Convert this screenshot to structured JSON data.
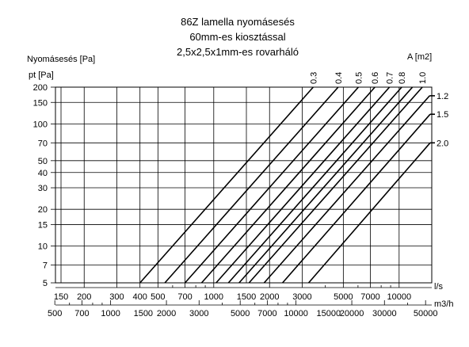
{
  "chart_data": {
    "type": "line",
    "title": [
      "86Z lamella nyomásesés",
      "60mm-es kiosztással",
      "2,5x2,5x1mm-es rovarháló"
    ],
    "ylabel_top": "Nyomásesés [Pa]",
    "ylabel": "pt [Pa]",
    "area_label": "A [m2]",
    "xlabel_ls": "l/s",
    "xlabel_m3h": "m3/h",
    "y_scale": "log",
    "x_scale": "log",
    "ylim": [
      5,
      200
    ],
    "xlim_ls": [
      140,
      15000
    ],
    "grid": true,
    "y_ticks": [
      5,
      7,
      10,
      15,
      20,
      30,
      40,
      50,
      70,
      100,
      150,
      200
    ],
    "y_tick_labels": [
      "5",
      "7",
      "10",
      "15",
      "20",
      "30",
      "40",
      "50",
      "70",
      "100",
      "150",
      "200"
    ],
    "x_ticks_ls": [
      150,
      200,
      300,
      400,
      500,
      700,
      1000,
      1500,
      2000,
      3000,
      5000,
      7000,
      10000
    ],
    "x_tick_labels_ls": [
      "150",
      "200",
      "300",
      "400",
      "500",
      "700",
      "1000",
      "1500",
      "2000",
      "3000",
      "5000",
      "7000",
      "10000"
    ],
    "x_ticks_m3h": [
      500,
      700,
      1000,
      1500,
      2000,
      3000,
      5000,
      7000,
      10000,
      15000,
      20000,
      30000,
      50000
    ],
    "x_tick_labels_m3h": [
      "500",
      "700 1000 1500",
      "",
      "",
      "2000",
      "3000",
      "5000 7000",
      "",
      "10000",
      "15000",
      "20000",
      "30000",
      "50000"
    ],
    "x_tick_labels_m3h_plain": [
      "500",
      "700",
      "1000",
      "1500",
      "2000",
      "3000",
      "5000",
      "7000",
      "10000",
      "15000",
      "20000",
      "30000",
      "50000"
    ],
    "series": [
      {
        "name": "0.3",
        "x_ls": [
          400,
          3440
        ],
        "y": [
          5,
          200
        ]
      },
      {
        "name": "0.4",
        "x_ls": [
          545,
          4690
        ],
        "y": [
          5,
          200
        ]
      },
      {
        "name": "0.5",
        "x_ls": [
          700,
          6030
        ],
        "y": [
          5,
          200
        ]
      },
      {
        "name": "0.6",
        "x_ls": [
          860,
          7400
        ],
        "y": [
          5,
          200
        ]
      },
      {
        "name": "0.7",
        "x_ls": [
          1030,
          8870
        ],
        "y": [
          5,
          200
        ]
      },
      {
        "name": "0.8",
        "x_ls": [
          1200,
          10330
        ],
        "y": [
          5,
          200
        ]
      },
      {
        "name": "0.9",
        "x_ls": [
          1370,
          11800
        ],
        "y": [
          5,
          200
        ]
      },
      {
        "name": "1.0",
        "x_ls": [
          1550,
          13340
        ],
        "y": [
          5,
          200
        ]
      },
      {
        "name": "1.2",
        "x_ls": [
          1870,
          14600
        ],
        "y": [
          5,
          170
        ]
      },
      {
        "name": "1.5",
        "x_ls": [
          2350,
          14700
        ],
        "y": [
          5,
          120
        ]
      },
      {
        "name": "2.0",
        "x_ls": [
          3250,
          14700
        ],
        "y": [
          5,
          70
        ]
      }
    ],
    "series_labels_shown": [
      "0.3",
      "0.4",
      "0.5",
      "0.6",
      "0.7",
      "0.8",
      "1.0",
      "1.2",
      "1.5",
      "2.0"
    ]
  }
}
